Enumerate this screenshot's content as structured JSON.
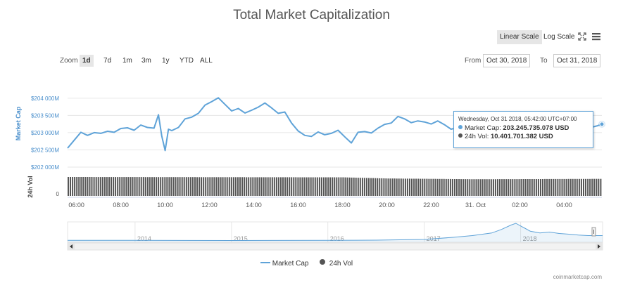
{
  "chart": {
    "title": "Total Market Capitalization",
    "scale_buttons": {
      "linear": "Linear Scale",
      "log": "Log Scale"
    },
    "zoom": {
      "label": "Zoom",
      "options": [
        "1d",
        "7d",
        "1m",
        "3m",
        "1y",
        "YTD",
        "ALL"
      ],
      "selected": "1d"
    },
    "range": {
      "from_label": "From",
      "from_value": "Oct 30, 2018",
      "to_label": "To",
      "to_value": "Oct 31, 2018"
    },
    "tooltip": {
      "date": "Wednesday, Oct 31 2018, 05:42:00 UTC+07:00",
      "market_cap_label": "Market Cap:",
      "market_cap_value": "203.245.735.078 USD",
      "vol_label": "24h Vol:",
      "vol_value": "10.401.701.382 USD"
    },
    "legend": {
      "market_cap": "Market Cap",
      "vol": "24h Vol"
    },
    "credit": "coinmarketcap.com",
    "colors": {
      "market_cap": "#5fa3d8",
      "vol": "#555555",
      "grid": "#e6e6e6",
      "axis_text": "#4a8fcc"
    }
  },
  "chart_data": {
    "type": "line",
    "ylabel": "Market Cap",
    "vol_ylabel": "24h Vol",
    "ylim": [
      202000,
      204200
    ],
    "yticks": [
      "$204 000M",
      "$203 500M",
      "$203 000M",
      "$202 500M",
      "$202 000M"
    ],
    "ytick_values": [
      204000,
      203500,
      203000,
      202500,
      202000
    ],
    "vol_ytick": "0",
    "xlim": [
      5.6,
      29.7
    ],
    "xticks": [
      "06:00",
      "08:00",
      "10:00",
      "12:00",
      "14:00",
      "16:00",
      "18:00",
      "20:00",
      "22:00",
      "31. Oct",
      "02:00",
      "04:00"
    ],
    "xtick_values": [
      6,
      8,
      10,
      12,
      14,
      16,
      18,
      20,
      22,
      24,
      26,
      28
    ],
    "series": [
      {
        "name": "Market Cap",
        "x": [
          5.6,
          5.9,
          6.2,
          6.5,
          6.8,
          7.1,
          7.4,
          7.7,
          8.0,
          8.3,
          8.6,
          8.9,
          9.2,
          9.5,
          9.7,
          9.85,
          10.0,
          10.15,
          10.3,
          10.6,
          10.9,
          11.2,
          11.5,
          11.8,
          12.1,
          12.4,
          12.7,
          13.0,
          13.3,
          13.6,
          13.9,
          14.2,
          14.5,
          14.8,
          15.1,
          15.4,
          15.7,
          16.0,
          16.3,
          16.6,
          16.9,
          17.2,
          17.5,
          17.8,
          18.1,
          18.4,
          18.7,
          19.0,
          19.3,
          19.6,
          19.9,
          20.2,
          20.5,
          20.8,
          21.1,
          21.4,
          21.7,
          22.0,
          22.3,
          22.6,
          22.9,
          23.2,
          23.5,
          23.8,
          24.1,
          24.4,
          24.7,
          25.0,
          25.3,
          25.6,
          25.9,
          26.2,
          26.5,
          26.8,
          27.1,
          27.4,
          27.7,
          28.0,
          28.3,
          28.6,
          28.9,
          29.2,
          29.5,
          29.7
        ],
        "y": [
          202550,
          202780,
          203010,
          202920,
          203000,
          202980,
          203040,
          203010,
          203120,
          203140,
          203070,
          203220,
          203150,
          203130,
          203520,
          202900,
          202480,
          203100,
          203060,
          203150,
          203400,
          203450,
          203560,
          203800,
          203900,
          204010,
          203820,
          203630,
          203700,
          203570,
          203650,
          203740,
          203860,
          203720,
          203560,
          203600,
          203280,
          203050,
          202920,
          202890,
          203020,
          202940,
          202980,
          203070,
          202880,
          202700,
          203010,
          203030,
          202990,
          203130,
          203240,
          203280,
          203470,
          203400,
          203290,
          203340,
          203310,
          203250,
          203340,
          203230,
          203100,
          203150,
          203100,
          203070,
          203080,
          203120,
          203050,
          203040,
          203100,
          203150,
          203080,
          203100,
          203040,
          203120,
          203100,
          203050,
          203080,
          203110,
          203020,
          203070,
          203100,
          203150,
          203200,
          203245
        ]
      },
      {
        "name": "24h Vol",
        "x": [
          5.6,
          18.0,
          20.0,
          24.0,
          29.7
        ],
        "y": [
          1,
          0.98,
          0.92,
          0.88,
          0.9
        ]
      }
    ],
    "navigator_xticks": [
      "2014",
      "2015",
      "2016",
      "2017",
      "2018"
    ],
    "navigator": {
      "xlim": [
        2013.3,
        2018.85
      ],
      "xtick_values": [
        2014,
        2015,
        2016,
        2017,
        2018
      ],
      "x": [
        2013.3,
        2014.0,
        2015.0,
        2016.0,
        2016.5,
        2017.0,
        2017.3,
        2017.5,
        2017.7,
        2017.8,
        2017.9,
        2017.95,
        2018.0,
        2018.05,
        2018.1,
        2018.2,
        2018.3,
        2018.4,
        2018.5,
        2018.6,
        2018.7,
        2018.85
      ],
      "y": [
        0.03,
        0.03,
        0.02,
        0.03,
        0.04,
        0.08,
        0.2,
        0.3,
        0.45,
        0.65,
        0.9,
        1.0,
        0.85,
        0.7,
        0.55,
        0.45,
        0.5,
        0.42,
        0.38,
        0.33,
        0.3,
        0.3
      ]
    }
  }
}
